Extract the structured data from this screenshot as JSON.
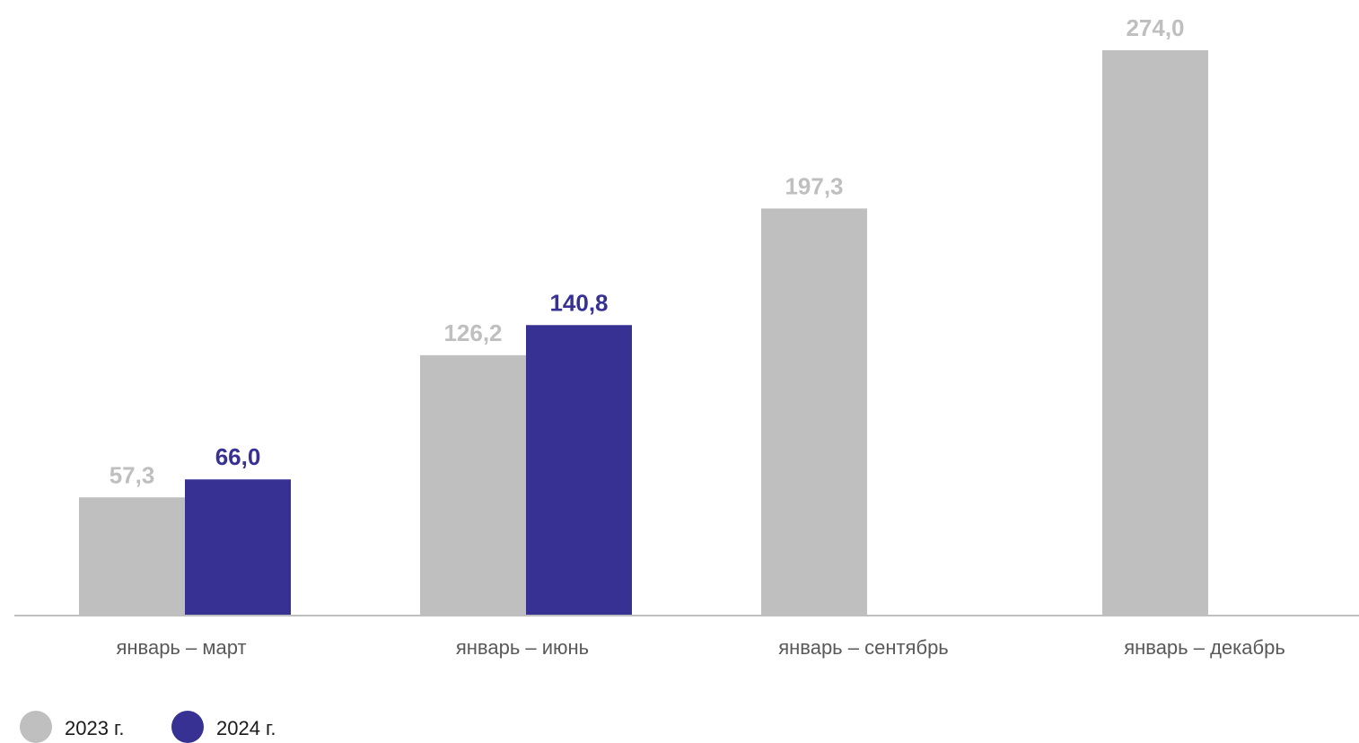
{
  "chart_data": {
    "type": "bar",
    "categories": [
      "январь – март",
      "январь – июнь",
      "январь – сентябрь",
      "январь – декабрь"
    ],
    "series": [
      {
        "name": "2023 г.",
        "color": "#bfbfbf",
        "values": [
          57.3,
          126.2,
          197.3,
          274.0
        ],
        "labels": [
          "57,3",
          "126,2",
          "197,3",
          "274,0"
        ]
      },
      {
        "name": "2024 г.",
        "color": "#373193",
        "values": [
          66.0,
          140.8,
          null,
          null
        ],
        "labels": [
          "66,0",
          "140,8",
          "",
          ""
        ]
      }
    ],
    "ylim": [
      0,
      274.0
    ],
    "grid": false,
    "legend_position": "bottom-left"
  }
}
